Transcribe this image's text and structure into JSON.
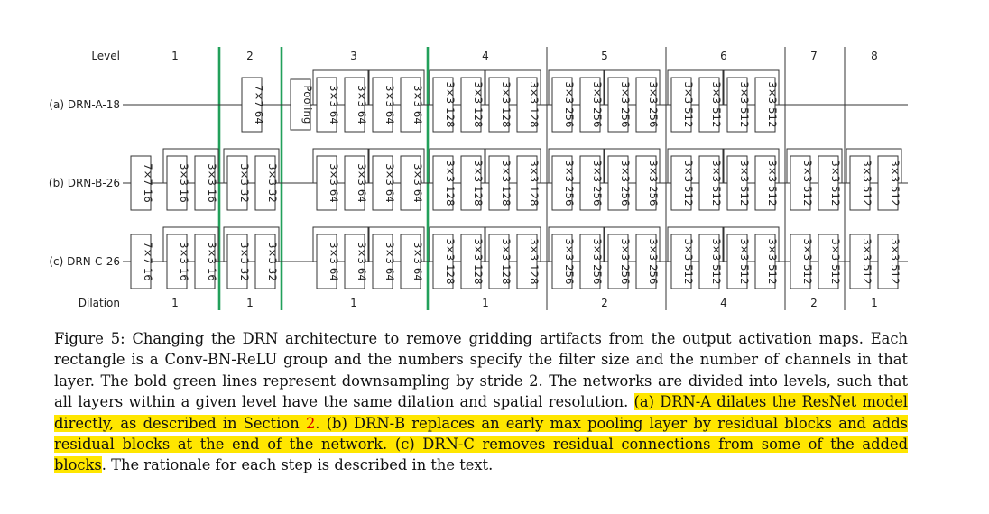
{
  "figure": {
    "level_header": "Level",
    "dilation_header": "Dilation",
    "levels": [
      "1",
      "2",
      "3",
      "4",
      "5",
      "6",
      "7",
      "8"
    ],
    "dilations": [
      {
        "level_span": "1",
        "value": "1"
      },
      {
        "level_span": "2",
        "value": "1"
      },
      {
        "level_span": "3",
        "value": "1"
      },
      {
        "level_span": "4",
        "value": "1"
      },
      {
        "level_span": "5",
        "value": "2"
      },
      {
        "level_span": "6",
        "value": "4"
      },
      {
        "level_span": "7",
        "value": "2"
      },
      {
        "level_span": "8",
        "value": "1"
      }
    ],
    "downsampling_after_levels": [
      "1",
      "2",
      "3"
    ],
    "rows": [
      {
        "label": "(a) DRN-A-18",
        "layers": [
          {
            "text": "7×7 64",
            "level": "2",
            "residual": false
          },
          {
            "text": "Pooling",
            "level": "3",
            "residual": false
          },
          {
            "text": "3×3 64",
            "level": "3",
            "residual": true
          },
          {
            "text": "3×3 64",
            "level": "3",
            "residual": true
          },
          {
            "text": "3×3 64",
            "level": "3",
            "residual": true
          },
          {
            "text": "3×3 64",
            "level": "3",
            "residual": true
          },
          {
            "text": "3×3 128",
            "level": "4",
            "residual": true
          },
          {
            "text": "3×3 128",
            "level": "4",
            "residual": true
          },
          {
            "text": "3×3 128",
            "level": "4",
            "residual": true
          },
          {
            "text": "3×3 128",
            "level": "4",
            "residual": true
          },
          {
            "text": "3×3 256",
            "level": "5",
            "residual": true
          },
          {
            "text": "3×3 256",
            "level": "5",
            "residual": true
          },
          {
            "text": "3×3 256",
            "level": "5",
            "residual": true
          },
          {
            "text": "3×3 256",
            "level": "5",
            "residual": true
          },
          {
            "text": "3×3 512",
            "level": "6",
            "residual": true
          },
          {
            "text": "3×3 512",
            "level": "6",
            "residual": true
          },
          {
            "text": "3×3 512",
            "level": "6",
            "residual": true
          },
          {
            "text": "3×3 512",
            "level": "6",
            "residual": true
          }
        ]
      },
      {
        "label": "(b) DRN-B-26",
        "layers": [
          {
            "text": "7×7 16",
            "level": "1",
            "residual": false
          },
          {
            "text": "3×3 16",
            "level": "1",
            "residual": true
          },
          {
            "text": "3×3 16",
            "level": "1",
            "residual": true
          },
          {
            "text": "3×3 32",
            "level": "2",
            "residual": true
          },
          {
            "text": "3×3 32",
            "level": "2",
            "residual": true
          },
          {
            "text": "3×3 64",
            "level": "3",
            "residual": true
          },
          {
            "text": "3×3 64",
            "level": "3",
            "residual": true
          },
          {
            "text": "3×3 64",
            "level": "3",
            "residual": true
          },
          {
            "text": "3×3 64",
            "level": "3",
            "residual": true
          },
          {
            "text": "3×3 128",
            "level": "4",
            "residual": true
          },
          {
            "text": "3×3 128",
            "level": "4",
            "residual": true
          },
          {
            "text": "3×3 128",
            "level": "4",
            "residual": true
          },
          {
            "text": "3×3 128",
            "level": "4",
            "residual": true
          },
          {
            "text": "3×3 256",
            "level": "5",
            "residual": true
          },
          {
            "text": "3×3 256",
            "level": "5",
            "residual": true
          },
          {
            "text": "3×3 256",
            "level": "5",
            "residual": true
          },
          {
            "text": "3×3 256",
            "level": "5",
            "residual": true
          },
          {
            "text": "3×3 512",
            "level": "6",
            "residual": true
          },
          {
            "text": "3×3 512",
            "level": "6",
            "residual": true
          },
          {
            "text": "3×3 512",
            "level": "6",
            "residual": true
          },
          {
            "text": "3×3 512",
            "level": "6",
            "residual": true
          },
          {
            "text": "3×3 512",
            "level": "7",
            "residual": true
          },
          {
            "text": "3×3 512",
            "level": "7",
            "residual": true
          },
          {
            "text": "3×3 512",
            "level": "8",
            "residual": true
          },
          {
            "text": "3×3 512",
            "level": "8",
            "residual": true
          }
        ]
      },
      {
        "label": "(c) DRN-C-26",
        "layers": [
          {
            "text": "7×7 16",
            "level": "1",
            "residual": false
          },
          {
            "text": "3×3 16",
            "level": "1",
            "residual": true
          },
          {
            "text": "3×3 16",
            "level": "1",
            "residual": true
          },
          {
            "text": "3×3 32",
            "level": "2",
            "residual": true
          },
          {
            "text": "3×3 32",
            "level": "2",
            "residual": true
          },
          {
            "text": "3×3 64",
            "level": "3",
            "residual": true
          },
          {
            "text": "3×3 64",
            "level": "3",
            "residual": true
          },
          {
            "text": "3×3 64",
            "level": "3",
            "residual": true
          },
          {
            "text": "3×3 64",
            "level": "3",
            "residual": true
          },
          {
            "text": "3×3 128",
            "level": "4",
            "residual": true
          },
          {
            "text": "3×3 128",
            "level": "4",
            "residual": true
          },
          {
            "text": "3×3 128",
            "level": "4",
            "residual": true
          },
          {
            "text": "3×3 128",
            "level": "4",
            "residual": true
          },
          {
            "text": "3×3 256",
            "level": "5",
            "residual": true
          },
          {
            "text": "3×3 256",
            "level": "5",
            "residual": true
          },
          {
            "text": "3×3 256",
            "level": "5",
            "residual": true
          },
          {
            "text": "3×3 256",
            "level": "5",
            "residual": true
          },
          {
            "text": "3×3 512",
            "level": "6",
            "residual": true
          },
          {
            "text": "3×3 512",
            "level": "6",
            "residual": true
          },
          {
            "text": "3×3 512",
            "level": "6",
            "residual": true
          },
          {
            "text": "3×3 512",
            "level": "6",
            "residual": true
          },
          {
            "text": "3×3 512",
            "level": "7",
            "residual": false
          },
          {
            "text": "3×3 512",
            "level": "7",
            "residual": false
          },
          {
            "text": "3×3 512",
            "level": "8",
            "residual": false
          },
          {
            "text": "3×3 512",
            "level": "8",
            "residual": false
          }
        ]
      }
    ]
  },
  "caption": {
    "part1": "Figure 5: Changing the DRN architecture to remove gridding artifacts from the output activation maps. Each rectangle is a Conv-BN-ReLU group and the numbers specify the filter size and the number of channels in that layer. The bold green lines represent downsampling by stride 2. The networks are divided into levels, such that all layers within a given level have the same dilation and spatial resolution. ",
    "hl1": "(a) DRN-A dilates the ResNet model directly, as described in Section ",
    "ref": "2",
    "hl2": ". (b) DRN-B replaces an early max pooling layer by residual blocks and adds residual blocks at the end of the network. (c) DRN-C removes residual connections from some of the added blocks",
    "part2": ". The rationale for each step is described in the text."
  },
  "colors": {
    "downsampling_line": "#22a05a",
    "highlight": "#ffe600",
    "reference": "#d40000"
  }
}
